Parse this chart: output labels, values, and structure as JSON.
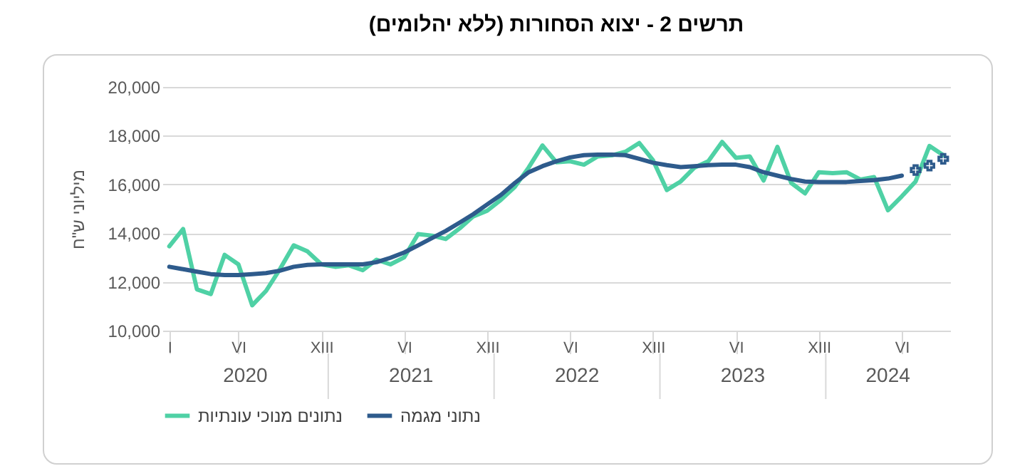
{
  "chart_data": {
    "type": "line",
    "title": "תרשים 2 - יצוא הסחורות (ללא יהלומים)",
    "ylabel": "מיליוני ש\"ח",
    "categories": [
      "I",
      null,
      null,
      null,
      null,
      "VI",
      null,
      null,
      null,
      null,
      null,
      "XIII",
      null,
      null,
      null,
      null,
      null,
      "VI",
      null,
      null,
      null,
      null,
      null,
      "XIII",
      null,
      null,
      null,
      null,
      null,
      "VI",
      null,
      null,
      null,
      null,
      null,
      "XIII",
      null,
      null,
      null,
      null,
      null,
      "VI",
      null,
      null,
      null,
      null,
      null,
      "XIII",
      null,
      null,
      null,
      null,
      null,
      "VI",
      null,
      null,
      null
    ],
    "annotations": [
      "2020",
      "2021",
      "2022",
      "2023",
      "2024"
    ],
    "series": [
      {
        "name": "נתונים מנוכי עונתיות",
        "color": "#4fd1a5",
        "values": [
          13460,
          14170,
          11690,
          11500,
          13110,
          12720,
          11040,
          11630,
          12520,
          13500,
          13250,
          12720,
          12620,
          12680,
          12480,
          12910,
          12720,
          13010,
          13960,
          13900,
          13760,
          14190,
          14690,
          14920,
          15370,
          15900,
          16690,
          17600,
          16910,
          16950,
          16810,
          17150,
          17190,
          17340,
          17700,
          16990,
          15770,
          16120,
          16690,
          16950,
          17740,
          17090,
          17150,
          16160,
          17540,
          16060,
          15630,
          16500,
          16460,
          16500,
          16200,
          16300,
          14940,
          15510,
          16120,
          17580,
          17200
        ]
      },
      {
        "name": "נתוני מגמה",
        "color": "#2e5b8c",
        "values": [
          12620,
          12520,
          12420,
          12320,
          12280,
          12280,
          12320,
          12360,
          12460,
          12620,
          12700,
          12720,
          12720,
          12720,
          12720,
          12810,
          12990,
          13210,
          13500,
          13800,
          14090,
          14430,
          14780,
          15180,
          15570,
          16060,
          16500,
          16750,
          16950,
          17110,
          17200,
          17220,
          17220,
          17200,
          17050,
          16890,
          16790,
          16710,
          16750,
          16790,
          16810,
          16810,
          16710,
          16500,
          16360,
          16220,
          16120,
          16100,
          16100,
          16100,
          16140,
          16180,
          16240,
          16360,
          null,
          null,
          null
        ]
      },
      {
        "type": "scatter",
        "marker": "cross",
        "color": "#2e5b8c",
        "values": [
          null,
          null,
          null,
          null,
          null,
          null,
          null,
          null,
          null,
          null,
          null,
          null,
          null,
          null,
          null,
          null,
          null,
          null,
          null,
          null,
          null,
          null,
          null,
          null,
          null,
          null,
          null,
          null,
          null,
          null,
          null,
          null,
          null,
          null,
          null,
          null,
          null,
          null,
          null,
          null,
          null,
          null,
          null,
          null,
          null,
          null,
          null,
          null,
          null,
          null,
          null,
          null,
          null,
          null,
          16590,
          16770,
          17050
        ]
      }
    ],
    "ylim": [
      10000,
      20000
    ],
    "yticks": [
      {
        "value": 10000,
        "label": "10,000"
      },
      {
        "value": 12000,
        "label": "12,000"
      },
      {
        "value": 14000,
        "label": "14,000"
      },
      {
        "value": 16000,
        "label": "16,000"
      },
      {
        "value": 18000,
        "label": "18,000"
      },
      {
        "value": 20000,
        "label": "20,000"
      }
    ],
    "grid": "y",
    "legend": "bottom"
  }
}
